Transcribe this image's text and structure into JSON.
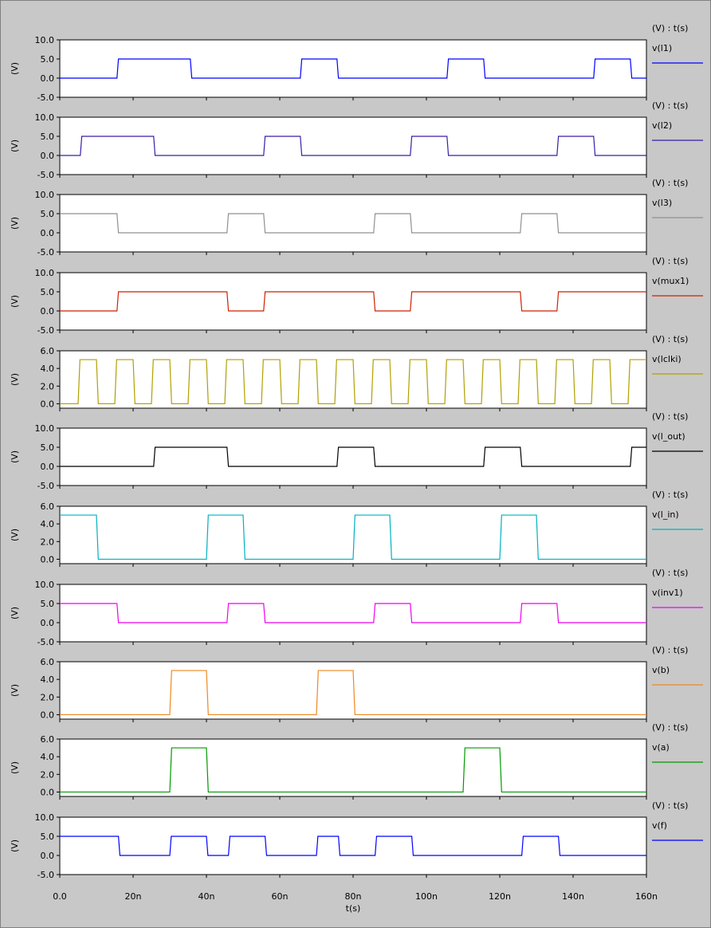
{
  "chart_data": {
    "type": "line",
    "xlabel": "t(s)",
    "x_range": [
      0,
      160
    ],
    "x_ticks": [
      {
        "v": 0,
        "label": "0.0"
      },
      {
        "v": 20,
        "label": "20n"
      },
      {
        "v": 40,
        "label": "40n"
      },
      {
        "v": 60,
        "label": "60n"
      },
      {
        "v": 80,
        "label": "80n"
      },
      {
        "v": 100,
        "label": "100n"
      },
      {
        "v": 120,
        "label": "120n"
      },
      {
        "v": 140,
        "label": "140n"
      },
      {
        "v": 160,
        "label": "160n"
      }
    ],
    "panels": [
      {
        "name": "v(l1)",
        "header": "(V) : t(s)",
        "ylabel": "(V)",
        "color": "#0000ff",
        "ylim": [
          -5,
          10
        ],
        "y_ticks": [
          {
            "v": 10,
            "label": "10.0"
          },
          {
            "v": 5,
            "label": "5.0"
          },
          {
            "v": 0,
            "label": "0.0"
          },
          {
            "v": -5,
            "label": "-5.0"
          }
        ],
        "x": [
          0,
          15.6,
          16,
          35.6,
          36,
          65.6,
          66,
          75.6,
          76,
          105.6,
          106,
          115.6,
          116,
          145.6,
          146,
          155.6,
          156,
          160
        ],
        "y": [
          0,
          0,
          5,
          5,
          0,
          0,
          5,
          5,
          0,
          0,
          5,
          5,
          0,
          0,
          5,
          5,
          0,
          0
        ]
      },
      {
        "name": "v(l2)",
        "header": "(V) : t(s)",
        "ylabel": "(V)",
        "color": "#3a1ca8",
        "ylim": [
          -5,
          10
        ],
        "y_ticks": [
          {
            "v": 10,
            "label": "10.0"
          },
          {
            "v": 5,
            "label": "5.0"
          },
          {
            "v": 0,
            "label": "0.0"
          },
          {
            "v": -5,
            "label": "-5.0"
          }
        ],
        "x": [
          0,
          5.6,
          6,
          25.6,
          26,
          55.6,
          56,
          65.6,
          66,
          95.6,
          96,
          105.6,
          106,
          135.6,
          136,
          145.6,
          146,
          160
        ],
        "y": [
          0,
          0,
          5,
          5,
          0,
          0,
          5,
          5,
          0,
          0,
          5,
          5,
          0,
          0,
          5,
          5,
          0,
          0
        ]
      },
      {
        "name": "v(l3)",
        "header": "(V) : t(s)",
        "ylabel": "(V)",
        "color": "#909090",
        "ylim": [
          -5,
          10
        ],
        "y_ticks": [
          {
            "v": 10,
            "label": "10.0"
          },
          {
            "v": 5,
            "label": "5.0"
          },
          {
            "v": 0,
            "label": "0.0"
          },
          {
            "v": -5,
            "label": "-5.0"
          }
        ],
        "x": [
          0,
          15.6,
          16,
          45.6,
          46,
          55.6,
          56,
          85.6,
          86,
          95.6,
          96,
          125.6,
          126,
          135.6,
          136,
          160
        ],
        "y": [
          5,
          5,
          0,
          0,
          5,
          5,
          0,
          0,
          5,
          5,
          0,
          0,
          5,
          5,
          0,
          0
        ]
      },
      {
        "name": "v(mux1)",
        "header": "(V) : t(s)",
        "ylabel": "(V)",
        "color": "#cc2200",
        "ylim": [
          -5,
          10
        ],
        "y_ticks": [
          {
            "v": 10,
            "label": "10.0"
          },
          {
            "v": 5,
            "label": "5.0"
          },
          {
            "v": 0,
            "label": "0.0"
          },
          {
            "v": -5,
            "label": "-5.0"
          }
        ],
        "x": [
          0,
          15.6,
          16,
          45.6,
          46,
          55.6,
          56,
          85.6,
          86,
          95.6,
          96,
          125.6,
          126,
          135.6,
          136,
          160
        ],
        "y": [
          0,
          0,
          5,
          5,
          0,
          0,
          5,
          5,
          0,
          0,
          5,
          5,
          0,
          0,
          5,
          5
        ]
      },
      {
        "name": "v(lclki)",
        "header": "(V) : t(s)",
        "ylabel": "(V)",
        "color": "#b0a000",
        "ylim": [
          -0.5,
          6
        ],
        "y_ticks": [
          {
            "v": 6,
            "label": "6.0"
          },
          {
            "v": 4,
            "label": "4.0"
          },
          {
            "v": 2,
            "label": "2.0"
          },
          {
            "v": 0,
            "label": "0.0"
          }
        ],
        "x": [
          0,
          5,
          5.5,
          10,
          10.5,
          15,
          15.5,
          20,
          20.5,
          25,
          25.5,
          30,
          30.5,
          35,
          35.5,
          40,
          40.5,
          45,
          45.5,
          50,
          50.5,
          55,
          55.5,
          60,
          60.5,
          65,
          65.5,
          70,
          70.5,
          75,
          75.5,
          80,
          80.5,
          85,
          85.5,
          90,
          90.5,
          95,
          95.5,
          100,
          100.5,
          105,
          105.5,
          110,
          110.5,
          115,
          115.5,
          120,
          120.5,
          125,
          125.5,
          130,
          130.5,
          135,
          135.5,
          140,
          140.5,
          145,
          145.5,
          150,
          150.5,
          155,
          155.5,
          160
        ],
        "y": [
          0,
          0,
          5,
          5,
          0,
          0,
          5,
          5,
          0,
          0,
          5,
          5,
          0,
          0,
          5,
          5,
          0,
          0,
          5,
          5,
          0,
          0,
          5,
          5,
          0,
          0,
          5,
          5,
          0,
          0,
          5,
          5,
          0,
          0,
          5,
          5,
          0,
          0,
          5,
          5,
          0,
          0,
          5,
          5,
          0,
          0,
          5,
          5,
          0,
          0,
          5,
          5,
          0,
          0,
          5,
          5,
          0,
          0,
          5,
          5,
          0,
          0,
          5,
          5
        ]
      },
      {
        "name": "v(l_out)",
        "header": "(V) : t(s)",
        "ylabel": "(V)",
        "color": "#000000",
        "ylim": [
          -5,
          10
        ],
        "y_ticks": [
          {
            "v": 10,
            "label": "10.0"
          },
          {
            "v": 5,
            "label": "5.0"
          },
          {
            "v": 0,
            "label": "0.0"
          },
          {
            "v": -5,
            "label": "-5.0"
          }
        ],
        "x": [
          0,
          25.6,
          26,
          45.6,
          46,
          75.6,
          76,
          85.6,
          86,
          115.6,
          116,
          125.6,
          126,
          155.6,
          156,
          160
        ],
        "y": [
          0,
          0,
          5,
          5,
          0,
          0,
          5,
          5,
          0,
          0,
          5,
          5,
          0,
          0,
          5,
          5
        ]
      },
      {
        "name": "v(l_in)",
        "header": "(V) : t(s)",
        "ylabel": "(V)",
        "color": "#00b0c0",
        "ylim": [
          -0.5,
          6
        ],
        "y_ticks": [
          {
            "v": 6,
            "label": "6.0"
          },
          {
            "v": 4,
            "label": "4.0"
          },
          {
            "v": 2,
            "label": "2.0"
          },
          {
            "v": 0,
            "label": "0.0"
          }
        ],
        "x": [
          0,
          10,
          10.5,
          40,
          40.5,
          50,
          50.5,
          80,
          80.5,
          90,
          90.5,
          120,
          120.5,
          130,
          130.5,
          160
        ],
        "y": [
          5,
          5,
          0,
          0,
          5,
          5,
          0,
          0,
          5,
          5,
          0,
          0,
          5,
          5,
          0,
          0
        ]
      },
      {
        "name": "v(inv1)",
        "header": "(V) : t(s)",
        "ylabel": "(V)",
        "color": "#ee00ee",
        "ylim": [
          -5,
          10
        ],
        "y_ticks": [
          {
            "v": 10,
            "label": "10.0"
          },
          {
            "v": 5,
            "label": "5.0"
          },
          {
            "v": 0,
            "label": "0.0"
          },
          {
            "v": -5,
            "label": "-5.0"
          }
        ],
        "x": [
          0,
          15.6,
          16,
          45.6,
          46,
          55.6,
          56,
          85.6,
          86,
          95.6,
          96,
          125.6,
          126,
          135.6,
          136,
          160
        ],
        "y": [
          5,
          5,
          0,
          0,
          5,
          5,
          0,
          0,
          5,
          5,
          0,
          0,
          5,
          5,
          0,
          0
        ]
      },
      {
        "name": "v(b)",
        "header": "(V) : t(s)",
        "ylabel": "(V)",
        "color": "#ee8822",
        "ylim": [
          -0.5,
          6
        ],
        "y_ticks": [
          {
            "v": 6,
            "label": "6.0"
          },
          {
            "v": 4,
            "label": "4.0"
          },
          {
            "v": 2,
            "label": "2.0"
          },
          {
            "v": 0,
            "label": "0.0"
          }
        ],
        "x": [
          0,
          30,
          30.5,
          40,
          40.5,
          70,
          70.5,
          80,
          80.5,
          160
        ],
        "y": [
          0,
          0,
          5,
          5,
          0,
          0,
          5,
          5,
          0,
          0
        ]
      },
      {
        "name": "v(a)",
        "header": "(V) : t(s)",
        "ylabel": "(V)",
        "color": "#009900",
        "ylim": [
          -0.5,
          6
        ],
        "y_ticks": [
          {
            "v": 6,
            "label": "6.0"
          },
          {
            "v": 4,
            "label": "4.0"
          },
          {
            "v": 2,
            "label": "2.0"
          },
          {
            "v": 0,
            "label": "0.0"
          }
        ],
        "x": [
          0,
          30,
          30.5,
          40,
          40.5,
          110,
          110.5,
          120,
          120.5,
          160
        ],
        "y": [
          0,
          0,
          5,
          5,
          0,
          0,
          5,
          5,
          0,
          0
        ]
      },
      {
        "name": "v(f)",
        "header": "(V) : t(s)",
        "ylabel": "(V)",
        "color": "#0000ff",
        "ylim": [
          -5,
          10
        ],
        "y_ticks": [
          {
            "v": 10,
            "label": "10.0"
          },
          {
            "v": 5,
            "label": "5.0"
          },
          {
            "v": 0,
            "label": "0.0"
          },
          {
            "v": -5,
            "label": "-5.0"
          }
        ],
        "x": [
          0,
          16,
          16.4,
          30,
          30.4,
          40,
          40.4,
          46,
          46.4,
          56,
          56.4,
          70,
          70.4,
          76,
          76.4,
          86,
          86.4,
          96,
          96.4,
          126,
          126.4,
          136,
          136.4,
          160
        ],
        "y": [
          5,
          5,
          0,
          0,
          5,
          5,
          0,
          0,
          5,
          5,
          0,
          0,
          5,
          5,
          0,
          0,
          5,
          5,
          0,
          0,
          5,
          5,
          0,
          0
        ]
      }
    ]
  }
}
